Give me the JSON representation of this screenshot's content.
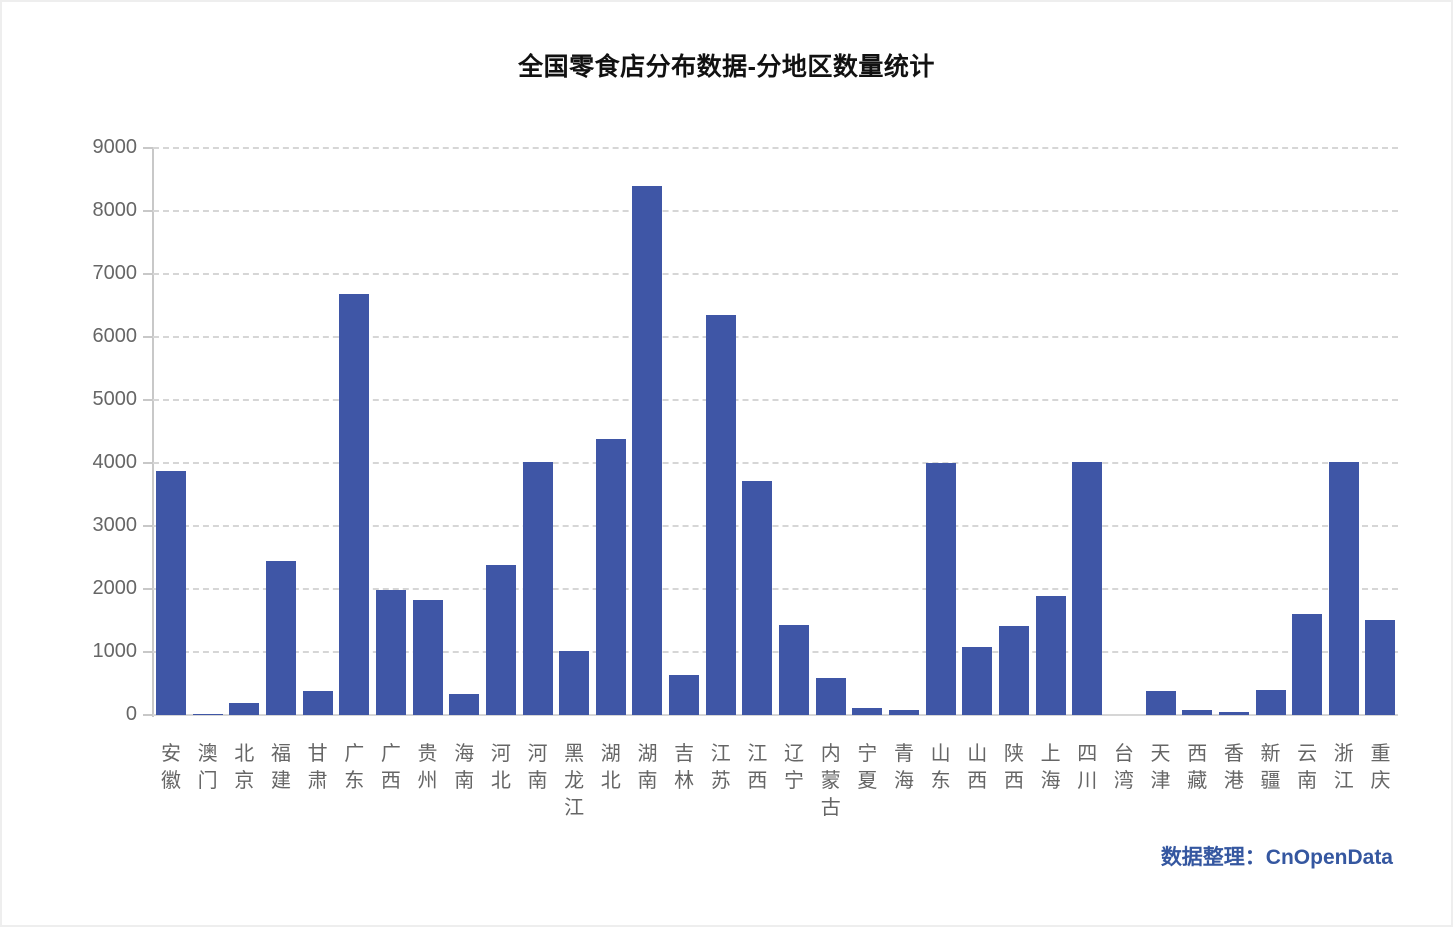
{
  "title": "全国零食店分布数据-分地区数量统计",
  "source_note": "数据整理：CnOpenData",
  "colors": {
    "bar": "#3f56a6",
    "source_text": "#3557a0",
    "grid": "#d6d6d6",
    "axis_text": "#666666"
  },
  "y_ticks": [
    "9000",
    "8000",
    "7000",
    "6000",
    "5000",
    "4000",
    "3000",
    "2000",
    "1000",
    "0"
  ],
  "chart_data": {
    "type": "bar",
    "title": "全国零食店分布数据-分地区数量统计",
    "xlabel": "",
    "ylabel": "",
    "ylim": [
      0,
      9000
    ],
    "yticks": [
      0,
      1000,
      2000,
      3000,
      4000,
      5000,
      6000,
      7000,
      8000,
      9000
    ],
    "grid": true,
    "grid_style": "dashed horizontal",
    "legend": null,
    "annotations": [
      "数据整理：CnOpenData"
    ],
    "categories": [
      "安徽",
      "澳门",
      "北京",
      "福建",
      "甘肃",
      "广东",
      "广西",
      "贵州",
      "海南",
      "河北",
      "河南",
      "黑龙江",
      "湖北",
      "湖南",
      "吉林",
      "江苏",
      "江西",
      "辽宁",
      "内蒙古",
      "宁夏",
      "青海",
      "山东",
      "山西",
      "陕西",
      "上海",
      "四川",
      "台湾",
      "天津",
      "西藏",
      "香港",
      "新疆",
      "云南",
      "浙江",
      "重庆"
    ],
    "values": [
      3880,
      20,
      195,
      2450,
      385,
      6690,
      1985,
      1825,
      335,
      2380,
      4015,
      1010,
      4375,
      8390,
      630,
      6345,
      3710,
      1425,
      590,
      115,
      85,
      4005,
      1085,
      1420,
      1895,
      4020,
      0,
      385,
      85,
      55,
      400,
      1610,
      4020,
      1515
    ]
  }
}
